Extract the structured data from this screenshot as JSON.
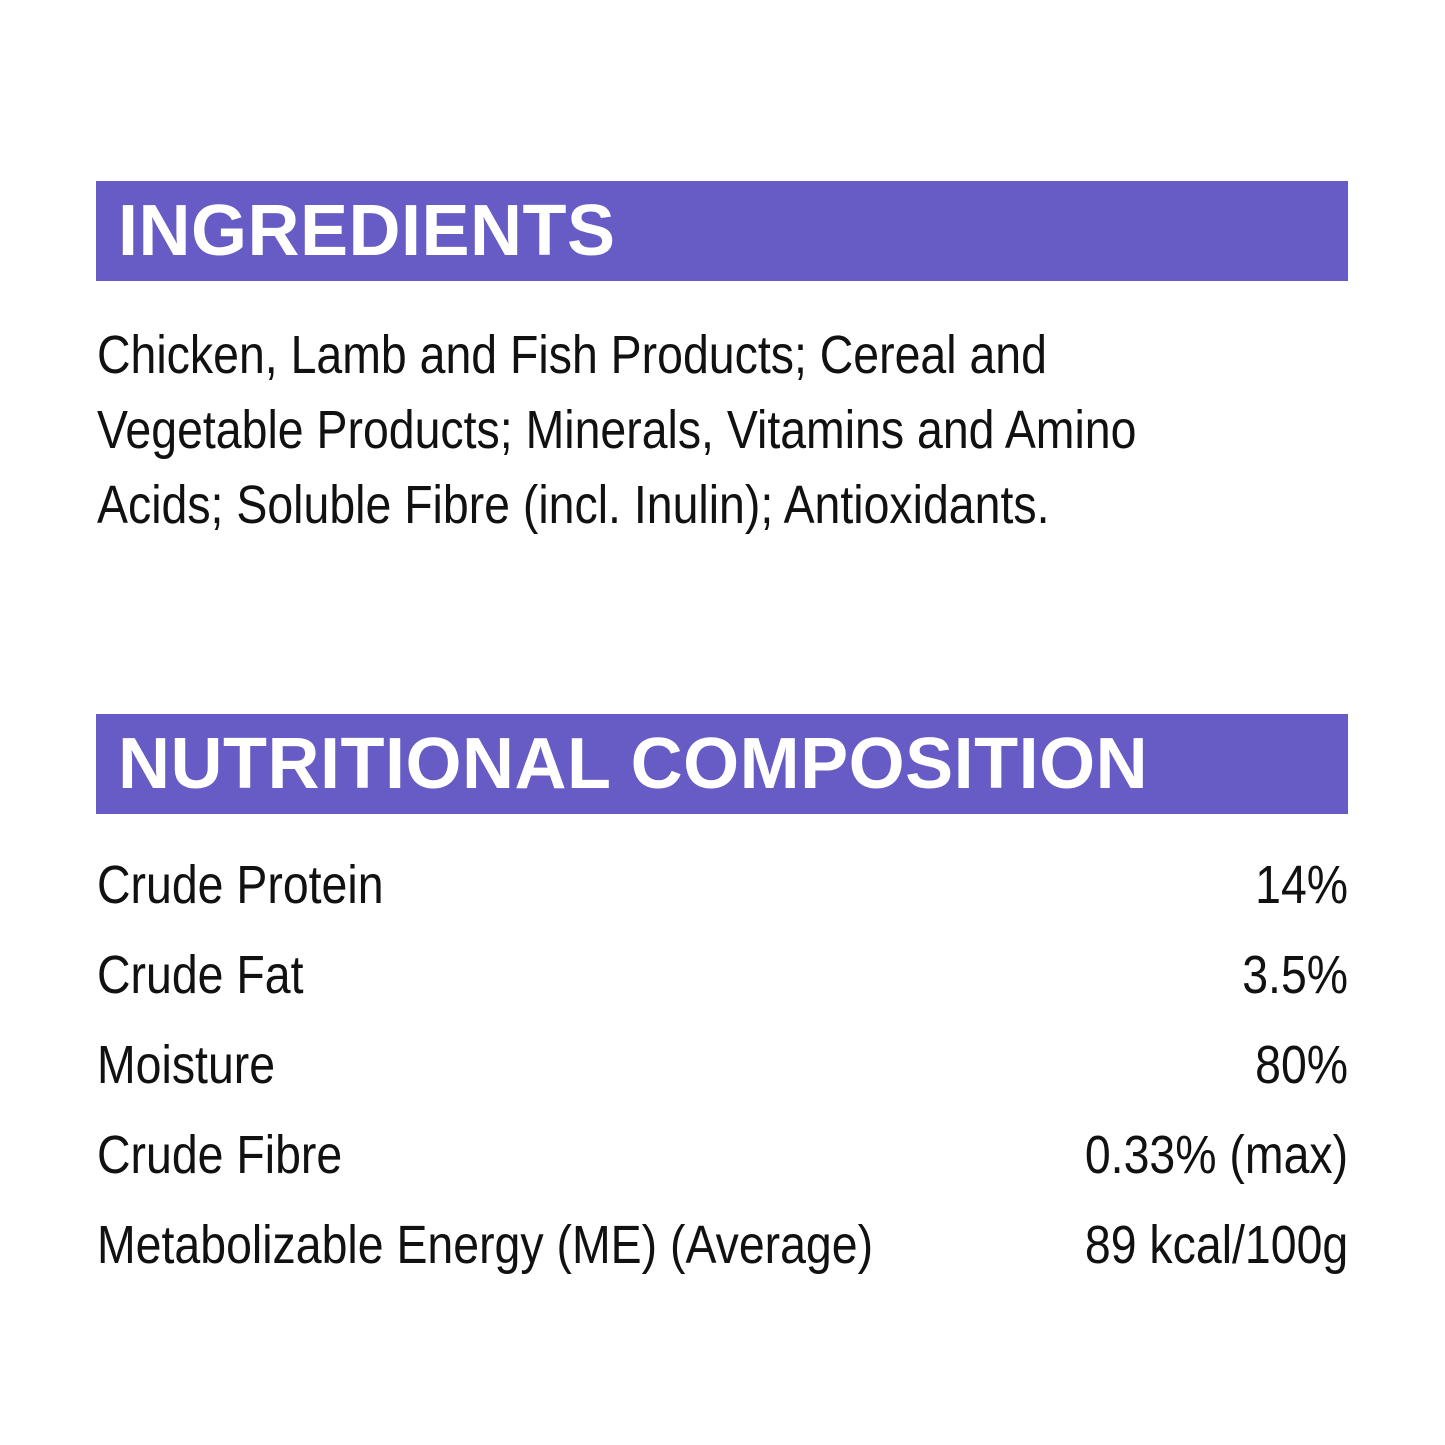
{
  "ingredients": {
    "title": "INGREDIENTS",
    "lines": [
      "Chicken, Lamb and Fish Products; Cereal and",
      "Vegetable Products; Minerals, Vitamins and Amino",
      "Acids; Soluble Fibre (incl. Inulin); Antioxidants."
    ]
  },
  "nutrition": {
    "title": "NUTRITIONAL COMPOSITION",
    "rows": [
      [
        "Crude Protein",
        "14%"
      ],
      [
        "Crude Fat",
        "3.5%"
      ],
      [
        "Moisture",
        "80%"
      ],
      [
        "Crude Fibre",
        "0.33% (max)"
      ],
      [
        "Metabolizable Energy (ME) (Average)",
        "89 kcal/100g"
      ]
    ]
  }
}
